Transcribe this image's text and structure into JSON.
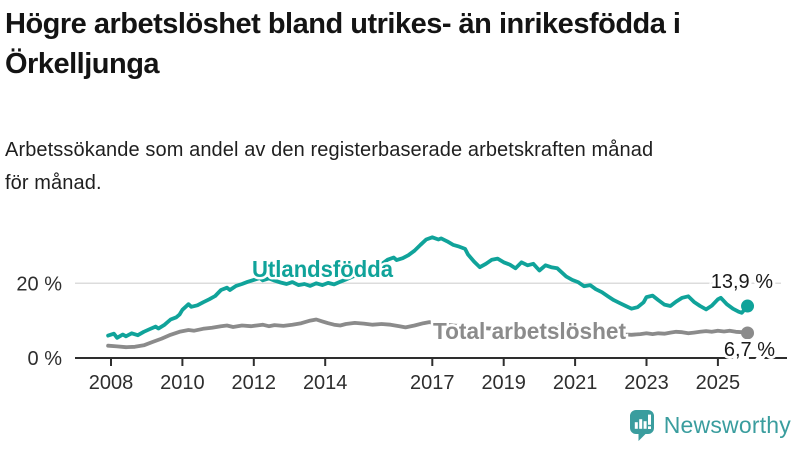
{
  "header": {
    "title_line1": "Högre arbetslöshet bland utrikes- än inrikesfödda i",
    "title_line2": "Örkelljunga",
    "subtitle_line1": "Arbetssökande som andel av den registerbaserade arbetskraften månad",
    "subtitle_line2": "för månad."
  },
  "chart_data": {
    "type": "line",
    "title": "Högre arbetslöshet bland utrikes- än inrikesfödda i Örkelljunga",
    "subtitle": "Arbetssökande som andel av den registerbaserade arbetskraften månad för månad.",
    "unit": "%",
    "xlim": [
      2007.9,
      2026.0
    ],
    "ylim": [
      0,
      36
    ],
    "grid": "horizontal-only",
    "x_axis": {
      "ticks": [
        {
          "year": 2008,
          "label": "2008"
        },
        {
          "year": 2010,
          "label": "2010"
        },
        {
          "year": 2012,
          "label": "2012"
        },
        {
          "year": 2014,
          "label": "2014"
        },
        {
          "year": 2017,
          "label": "2017"
        },
        {
          "year": 2019,
          "label": "2019"
        },
        {
          "year": 2021,
          "label": "2021"
        },
        {
          "year": 2023,
          "label": "2023"
        },
        {
          "year": 2025,
          "label": "2025"
        }
      ]
    },
    "y_axis": {
      "ticks": [
        {
          "value": 20,
          "label": "20 %"
        },
        {
          "value": 0,
          "label": "0 %"
        }
      ]
    },
    "series": [
      {
        "name": "Utlandsfödda",
        "color": "#10a39a",
        "end_value": 13.9,
        "end_label": "13,9 %",
        "points": [
          [
            2007.92,
            6.0
          ],
          [
            2008.08,
            6.5
          ],
          [
            2008.17,
            5.4
          ],
          [
            2008.33,
            6.3
          ],
          [
            2008.42,
            5.8
          ],
          [
            2008.58,
            6.6
          ],
          [
            2008.75,
            6.1
          ],
          [
            2008.92,
            7.0
          ],
          [
            2009.08,
            7.7
          ],
          [
            2009.25,
            8.4
          ],
          [
            2009.33,
            7.9
          ],
          [
            2009.5,
            8.9
          ],
          [
            2009.67,
            10.3
          ],
          [
            2009.83,
            10.9
          ],
          [
            2009.92,
            11.6
          ],
          [
            2010.0,
            12.9
          ],
          [
            2010.17,
            14.4
          ],
          [
            2010.25,
            13.7
          ],
          [
            2010.42,
            14.1
          ],
          [
            2010.58,
            14.9
          ],
          [
            2010.75,
            15.7
          ],
          [
            2010.92,
            16.6
          ],
          [
            2011.08,
            18.2
          ],
          [
            2011.25,
            18.8
          ],
          [
            2011.33,
            18.2
          ],
          [
            2011.5,
            19.3
          ],
          [
            2011.67,
            19.8
          ],
          [
            2011.83,
            20.4
          ],
          [
            2012.0,
            20.9
          ],
          [
            2012.17,
            21.4
          ],
          [
            2012.25,
            20.8
          ],
          [
            2012.42,
            21.3
          ],
          [
            2012.58,
            20.7
          ],
          [
            2012.75,
            20.2
          ],
          [
            2012.92,
            19.8
          ],
          [
            2013.08,
            20.3
          ],
          [
            2013.25,
            19.5
          ],
          [
            2013.42,
            19.8
          ],
          [
            2013.58,
            19.3
          ],
          [
            2013.75,
            20.0
          ],
          [
            2013.92,
            19.5
          ],
          [
            2014.08,
            20.1
          ],
          [
            2014.25,
            19.7
          ],
          [
            2014.42,
            20.4
          ],
          [
            2014.58,
            21.0
          ],
          [
            2014.75,
            21.7
          ],
          [
            2014.92,
            22.3
          ],
          [
            2015.08,
            23.2
          ],
          [
            2015.25,
            23.8
          ],
          [
            2015.42,
            24.3
          ],
          [
            2015.58,
            25.1
          ],
          [
            2015.75,
            26.3
          ],
          [
            2015.92,
            26.9
          ],
          [
            2016.0,
            26.2
          ],
          [
            2016.17,
            26.7
          ],
          [
            2016.33,
            27.5
          ],
          [
            2016.5,
            28.7
          ],
          [
            2016.67,
            30.3
          ],
          [
            2016.83,
            31.7
          ],
          [
            2017.0,
            32.3
          ],
          [
            2017.17,
            31.7
          ],
          [
            2017.25,
            32.0
          ],
          [
            2017.42,
            31.2
          ],
          [
            2017.58,
            30.3
          ],
          [
            2017.75,
            29.8
          ],
          [
            2017.92,
            29.2
          ],
          [
            2018.0,
            27.7
          ],
          [
            2018.17,
            25.8
          ],
          [
            2018.33,
            24.3
          ],
          [
            2018.5,
            25.2
          ],
          [
            2018.67,
            26.3
          ],
          [
            2018.83,
            26.6
          ],
          [
            2019.0,
            25.6
          ],
          [
            2019.17,
            25.0
          ],
          [
            2019.33,
            24.0
          ],
          [
            2019.5,
            25.6
          ],
          [
            2019.67,
            24.8
          ],
          [
            2019.83,
            25.2
          ],
          [
            2020.0,
            23.4
          ],
          [
            2020.17,
            24.8
          ],
          [
            2020.33,
            24.3
          ],
          [
            2020.5,
            24.0
          ],
          [
            2020.75,
            21.8
          ],
          [
            2020.92,
            20.9
          ],
          [
            2021.08,
            20.3
          ],
          [
            2021.25,
            19.2
          ],
          [
            2021.42,
            19.5
          ],
          [
            2021.58,
            18.4
          ],
          [
            2021.75,
            17.6
          ],
          [
            2021.92,
            16.5
          ],
          [
            2022.08,
            15.5
          ],
          [
            2022.25,
            14.7
          ],
          [
            2022.42,
            13.9
          ],
          [
            2022.58,
            13.2
          ],
          [
            2022.75,
            13.6
          ],
          [
            2022.92,
            14.9
          ],
          [
            2023.0,
            16.3
          ],
          [
            2023.17,
            16.7
          ],
          [
            2023.33,
            15.5
          ],
          [
            2023.5,
            14.3
          ],
          [
            2023.67,
            13.9
          ],
          [
            2023.83,
            15.1
          ],
          [
            2024.0,
            16.1
          ],
          [
            2024.17,
            16.5
          ],
          [
            2024.33,
            15.0
          ],
          [
            2024.5,
            13.9
          ],
          [
            2024.67,
            13.0
          ],
          [
            2024.83,
            14.0
          ],
          [
            2025.0,
            15.7
          ],
          [
            2025.08,
            16.1
          ],
          [
            2025.25,
            14.4
          ],
          [
            2025.42,
            13.2
          ],
          [
            2025.58,
            12.4
          ],
          [
            2025.67,
            12.1
          ],
          [
            2025.83,
            13.9
          ]
        ]
      },
      {
        "name": "Total arbetslöshet",
        "color": "#8b8b8b",
        "end_value": 6.7,
        "end_label": "6,7 %",
        "points": [
          [
            2007.92,
            3.3
          ],
          [
            2008.17,
            3.1
          ],
          [
            2008.42,
            2.9
          ],
          [
            2008.67,
            3.0
          ],
          [
            2008.92,
            3.4
          ],
          [
            2009.17,
            4.3
          ],
          [
            2009.42,
            5.2
          ],
          [
            2009.67,
            6.2
          ],
          [
            2009.92,
            7.0
          ],
          [
            2010.17,
            7.5
          ],
          [
            2010.33,
            7.3
          ],
          [
            2010.58,
            7.8
          ],
          [
            2010.83,
            8.1
          ],
          [
            2011.08,
            8.5
          ],
          [
            2011.25,
            8.7
          ],
          [
            2011.42,
            8.3
          ],
          [
            2011.67,
            8.7
          ],
          [
            2011.92,
            8.5
          ],
          [
            2012.08,
            8.7
          ],
          [
            2012.25,
            8.9
          ],
          [
            2012.42,
            8.5
          ],
          [
            2012.58,
            8.8
          ],
          [
            2012.83,
            8.6
          ],
          [
            2013.08,
            8.9
          ],
          [
            2013.33,
            9.3
          ],
          [
            2013.58,
            10.0
          ],
          [
            2013.75,
            10.3
          ],
          [
            2013.92,
            9.8
          ],
          [
            2014.08,
            9.3
          ],
          [
            2014.25,
            8.9
          ],
          [
            2014.42,
            8.7
          ],
          [
            2014.58,
            9.1
          ],
          [
            2014.83,
            9.4
          ],
          [
            2015.08,
            9.2
          ],
          [
            2015.33,
            8.9
          ],
          [
            2015.58,
            9.1
          ],
          [
            2015.83,
            8.9
          ],
          [
            2016.08,
            8.5
          ],
          [
            2016.25,
            8.2
          ],
          [
            2016.5,
            8.7
          ],
          [
            2016.75,
            9.3
          ],
          [
            2016.92,
            9.6
          ],
          [
            2017.08,
            9.3
          ],
          [
            2017.33,
            9.0
          ],
          [
            2017.58,
            8.7
          ],
          [
            2017.83,
            8.5
          ],
          [
            2018.08,
            8.2
          ],
          [
            2018.42,
            8.0
          ],
          [
            2018.75,
            7.8
          ],
          [
            2019.08,
            7.7
          ],
          [
            2019.42,
            7.5
          ],
          [
            2019.75,
            7.7
          ],
          [
            2020.08,
            7.9
          ],
          [
            2020.42,
            8.4
          ],
          [
            2020.67,
            8.2
          ],
          [
            2020.92,
            8.0
          ],
          [
            2021.25,
            7.6
          ],
          [
            2021.58,
            7.2
          ],
          [
            2021.92,
            6.9
          ],
          [
            2022.17,
            6.6
          ],
          [
            2022.42,
            6.3
          ],
          [
            2022.58,
            6.2
          ],
          [
            2022.83,
            6.4
          ],
          [
            2023.0,
            6.6
          ],
          [
            2023.17,
            6.4
          ],
          [
            2023.33,
            6.6
          ],
          [
            2023.5,
            6.5
          ],
          [
            2023.67,
            6.8
          ],
          [
            2023.83,
            7.0
          ],
          [
            2024.0,
            6.9
          ],
          [
            2024.17,
            6.6
          ],
          [
            2024.33,
            6.8
          ],
          [
            2024.5,
            7.0
          ],
          [
            2024.67,
            7.2
          ],
          [
            2024.83,
            7.0
          ],
          [
            2025.0,
            7.3
          ],
          [
            2025.17,
            7.1
          ],
          [
            2025.33,
            7.3
          ],
          [
            2025.5,
            7.0
          ],
          [
            2025.67,
            6.9
          ],
          [
            2025.83,
            6.7
          ]
        ]
      }
    ],
    "colors": {
      "axis": "#2e2e2e",
      "gridline": "#dcdcdc",
      "value_label_text": "#1a1a1a"
    }
  },
  "footer": {
    "brand": "Newsworthy",
    "brand_color": "#3a9d9e",
    "logo_icon": "newsworthy-chart-pin-icon"
  }
}
